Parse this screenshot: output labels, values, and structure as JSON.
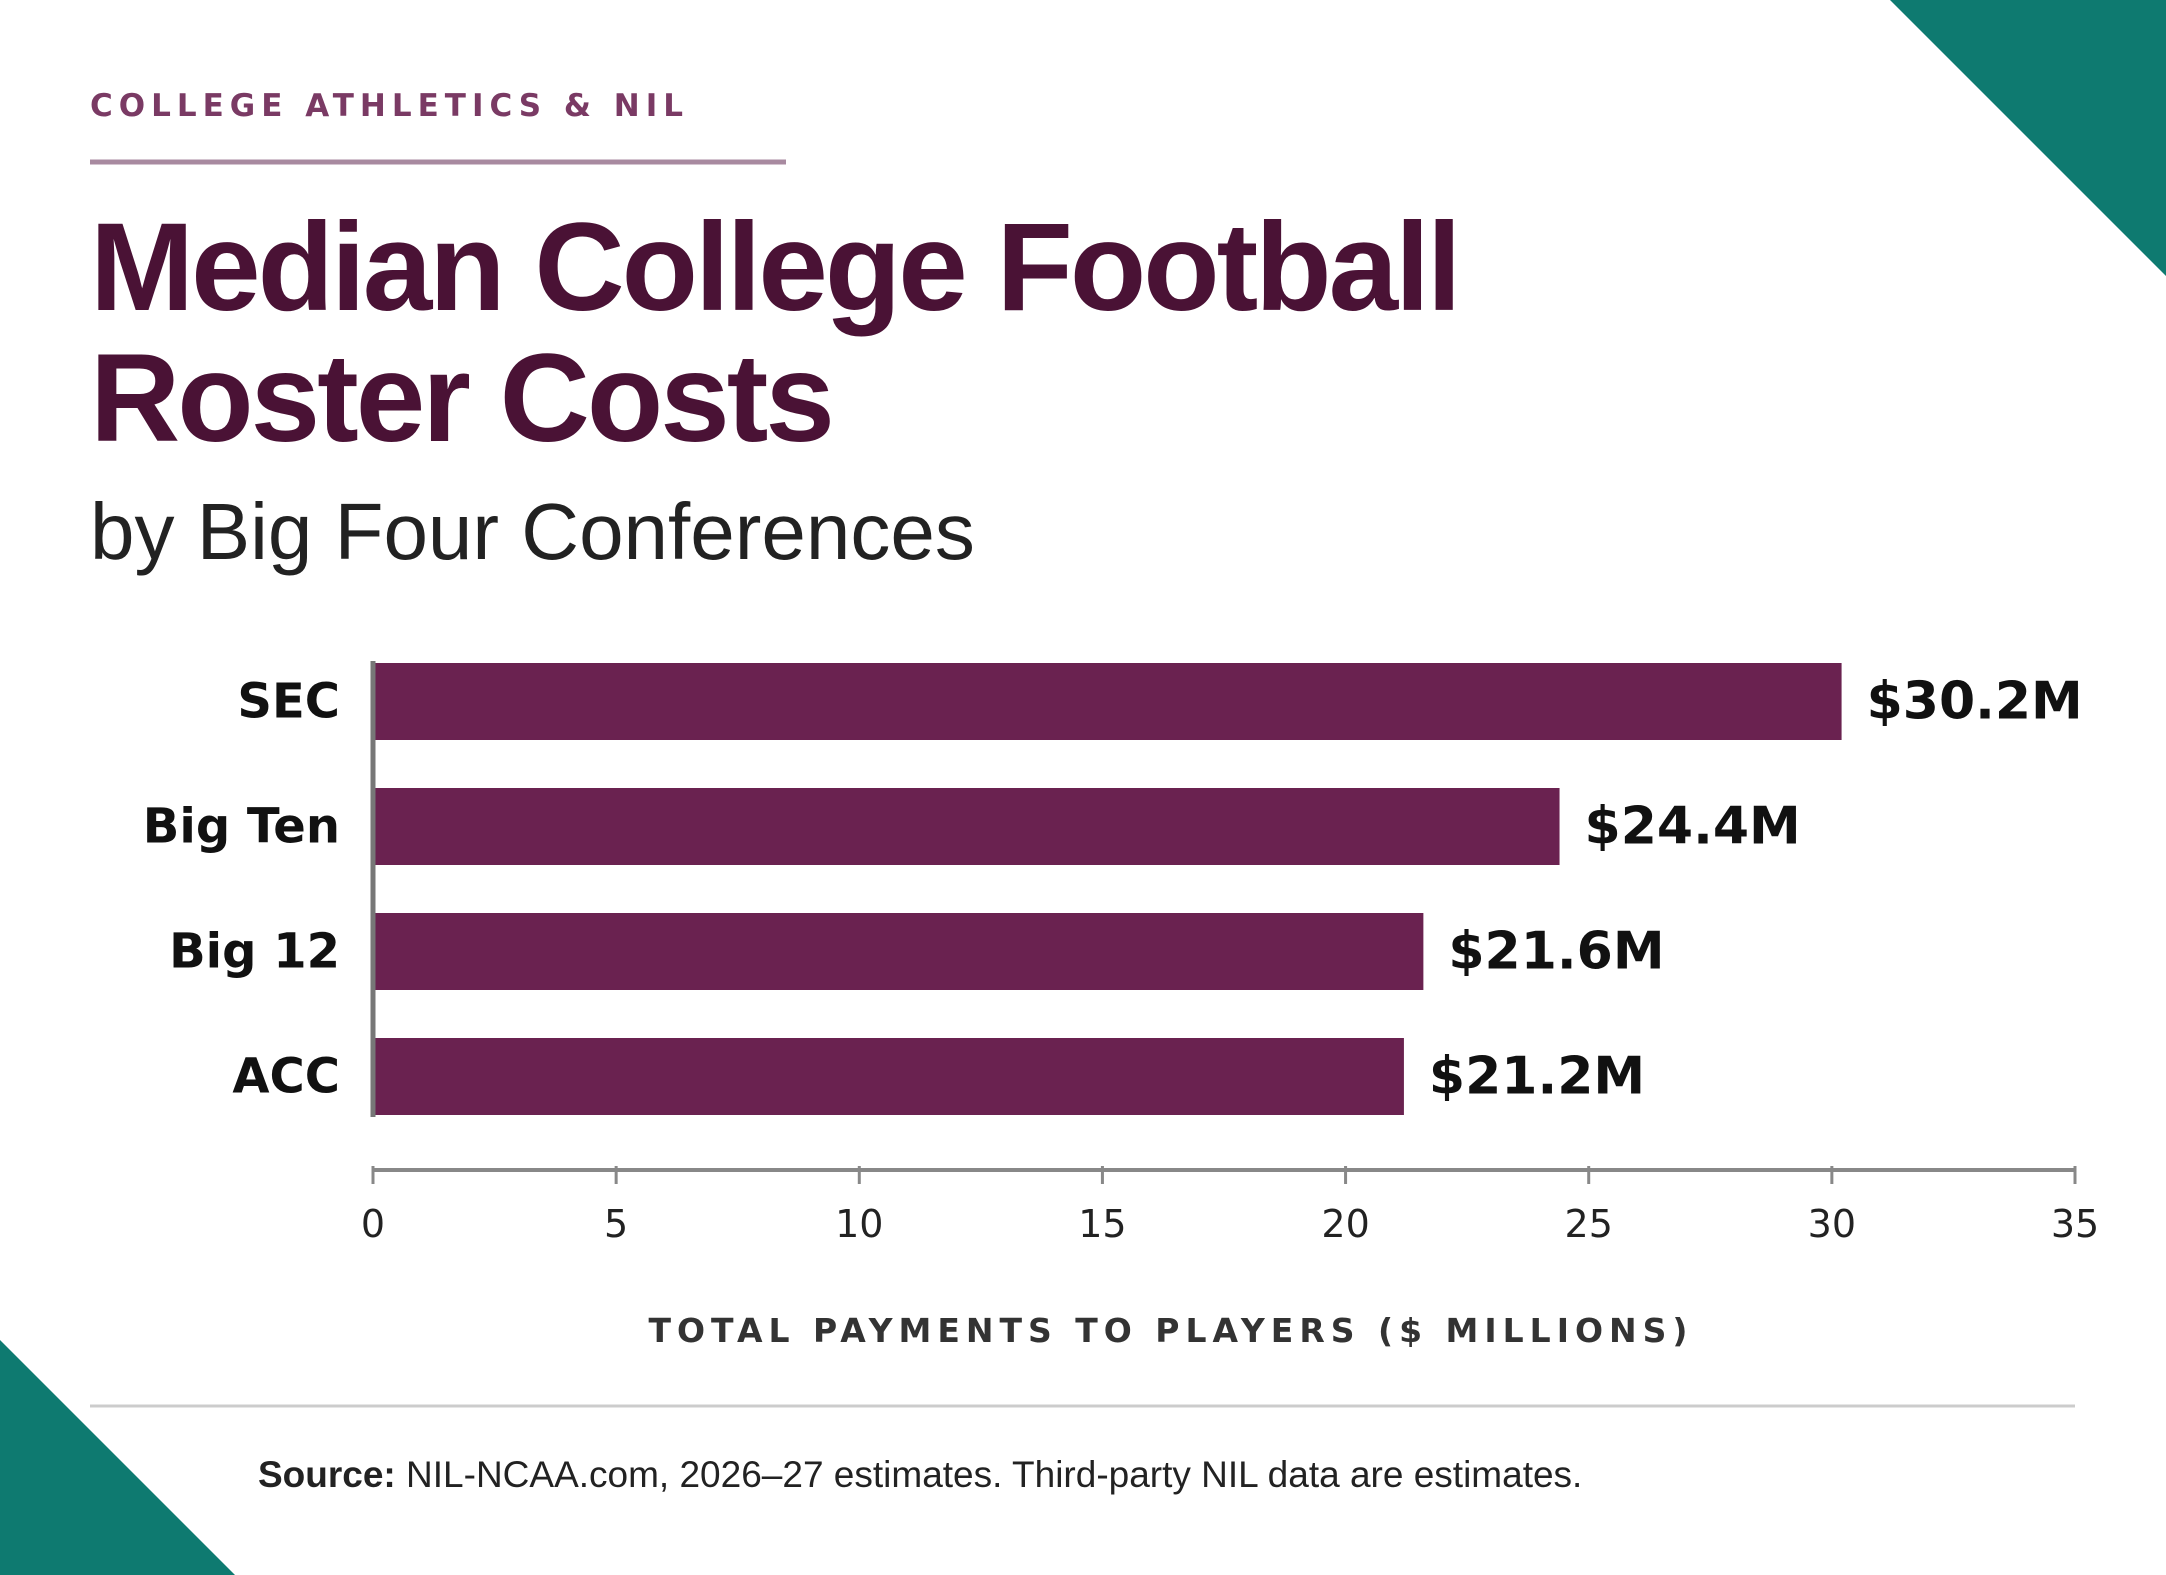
{
  "chart_data": {
    "type": "hbar",
    "kicker": "COLLEGE ATHLETICS & NIL",
    "title": "Median College Football Roster Costs",
    "subtitle": "by Big Four Conferences",
    "categories": [
      "SEC",
      "Big Ten",
      "Big 12",
      "ACC"
    ],
    "values": [
      30.2,
      24.4,
      21.6,
      21.2
    ],
    "value_labels": [
      "$30.2M",
      "$24.4M",
      "$21.6M",
      "$21.2M"
    ],
    "color": "#6a2250",
    "xlim": [
      0,
      35
    ],
    "xticks": [
      0,
      5,
      10,
      15,
      20,
      25,
      30,
      35
    ],
    "xlabel": "TOTAL PAYMENTS TO PLAYERS ($ MILLIONS)",
    "source_label": "Source:",
    "source": "NIL-NCAA.com, 2026–27 estimates. Third-party NIL data are estimates."
  }
}
